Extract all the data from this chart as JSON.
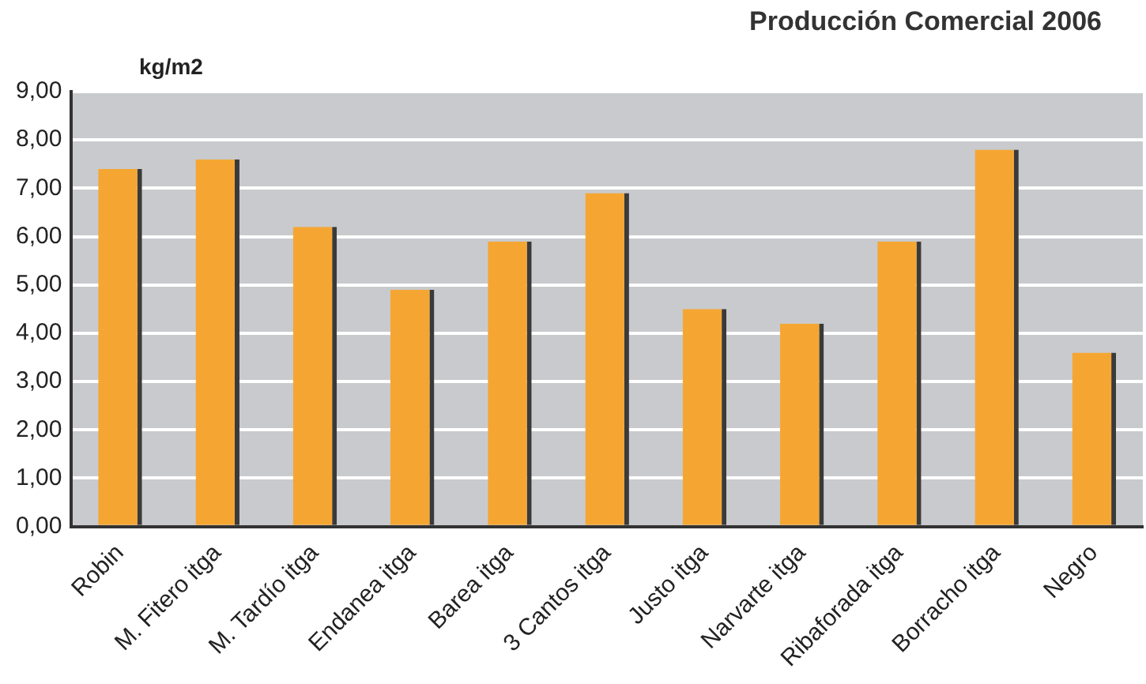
{
  "chart_data": {
    "type": "bar",
    "title": "Producción Comercial 2006",
    "ylabel": "kg/m2",
    "categories": [
      "Robin",
      "M. Fitero itga",
      "M. Tardío itga",
      "Endanea itga",
      "Barea itga",
      "3 Cantos itga",
      "Justo itga",
      "Narvarte itga",
      "Ribaforada itga",
      "Borracho itga",
      "Negro"
    ],
    "values": [
      7.4,
      7.6,
      6.2,
      4.9,
      5.9,
      6.9,
      4.5,
      4.2,
      5.9,
      7.8,
      3.6
    ],
    "color": "#f5a632",
    "ylim": [
      0,
      9
    ],
    "yticks": [
      {
        "value": 0,
        "label": "0,00"
      },
      {
        "value": 1,
        "label": "1,00"
      },
      {
        "value": 2,
        "label": "2,00"
      },
      {
        "value": 3,
        "label": "3,00"
      },
      {
        "value": 4,
        "label": "4,00"
      },
      {
        "value": 5,
        "label": "5,00"
      },
      {
        "value": 6,
        "label": "6,00"
      },
      {
        "value": 7,
        "label": "7,00"
      },
      {
        "value": 8,
        "label": "8,00"
      },
      {
        "value": 9,
        "label": "9,00"
      }
    ],
    "grid": "y"
  }
}
